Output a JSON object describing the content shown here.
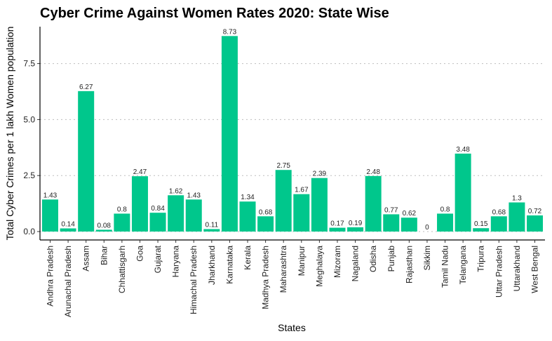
{
  "chart_data": {
    "type": "bar",
    "title": "Cyber Crime Against Women Rates 2020: State Wise",
    "xlabel": "States",
    "ylabel": "Total Cyber Crimes per 1 lakh Women population",
    "ylim": [
      0,
      9.1
    ],
    "yticks": [
      "0.0",
      "2.5",
      "5.0",
      "7.5"
    ],
    "ytick_values": [
      0,
      2.5,
      5.0,
      7.5
    ],
    "grid": "horizontal dotted",
    "bar_color": "#00C78C",
    "categories": [
      "Andhra Pradesh",
      "Arunachal Pradesh",
      "Assam",
      "Bihar",
      "Chhattisgarh",
      "Goa",
      "Gujarat",
      "Haryana",
      "Himachal Pradesh",
      "Jharkhand",
      "Karnataka",
      "Kerala",
      "Madhya Pradesh",
      "Maharashtra",
      "Manipur",
      "Meghalaya",
      "Mizoram",
      "Nagaland",
      "Odisha",
      "Punjab",
      "Rajasthan",
      "Sikkim",
      "Tamil Nadu",
      "Telangana",
      "Tripura",
      "Uttar Pradesh",
      "Uttarakhand",
      "West Bengal"
    ],
    "values": [
      1.43,
      0.14,
      6.27,
      0.08,
      0.8,
      2.47,
      0.84,
      1.62,
      1.43,
      0.11,
      8.73,
      1.34,
      0.68,
      2.75,
      1.67,
      2.39,
      0.17,
      0.19,
      2.48,
      0.77,
      0.62,
      0,
      0.8,
      3.48,
      0.15,
      0.68,
      1.3,
      0.72
    ],
    "value_labels": [
      "1.43",
      "0.14",
      "6.27",
      "0.08",
      "0.8",
      "2.47",
      "0.84",
      "1.62",
      "1.43",
      "0.11",
      "8.73",
      "1.34",
      "0.68",
      "2.75",
      "1.67",
      "2.39",
      "0.17",
      "0.19",
      "2.48",
      "0.77",
      "0.62",
      "0",
      "0.8",
      "3.48",
      "0.15",
      "0.68",
      "1.3",
      "0.72"
    ]
  }
}
